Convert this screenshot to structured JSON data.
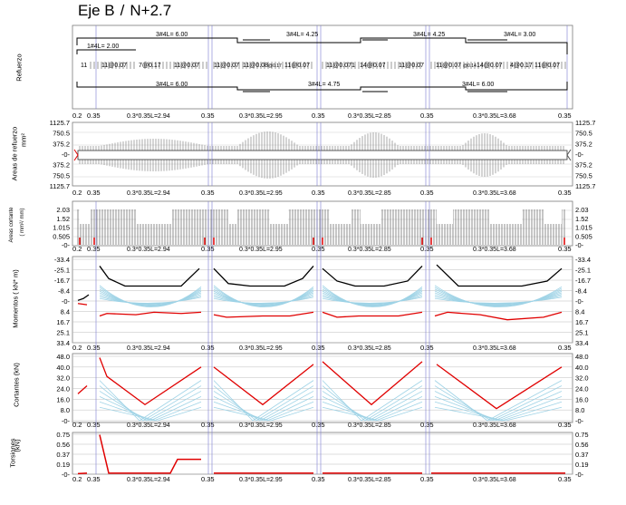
{
  "header": {
    "axis": "Eje B",
    "level": "N+2.7"
  },
  "panels": {
    "refuerzo": "Refuerzo",
    "areas": "Areas de refuerzo",
    "areas_unit": "mm²",
    "cortante_areas": "Areas cortante",
    "cortante_unit": "( mm²/ mm)",
    "momentos": "Momentos ( kN* m)",
    "cortantes": "Cortantes (kN)",
    "torsiones": "Torsiones",
    "torsiones_unit": "(kN)"
  },
  "ticks": {
    "areas": [
      "1125.7",
      "750.5",
      "375.2",
      "-0-",
      "375.2",
      "750.5",
      "1125.7"
    ],
    "cortante_areas": [
      "2.03",
      "1.52",
      "1.015",
      "0.505",
      "-0-"
    ],
    "momentos": [
      "-33.4",
      "-25.1",
      "-16.7",
      "-8.4",
      "-0-",
      "8.4",
      "16.7",
      "25.1",
      "33.4"
    ],
    "cortantes": [
      "48.0",
      "40.0",
      "32.0",
      "24.0",
      "16.0",
      "8.0",
      "-0-"
    ],
    "torsiones": [
      "0.75",
      "0.56",
      "0.37",
      "0.19",
      "-0-"
    ]
  },
  "spans": {
    "col_left": "0.2",
    "col_mid": "0.35",
    "labels": [
      "0.3*0.35L=2.94",
      "0.3*0.35L=2.95",
      "0.3*0.35L=2.85",
      "0.3*0.35L=3.68"
    ]
  },
  "refuerzo": {
    "top": [
      "3#4L= 6.00",
      "3#4L= 4.25",
      "3#4L= 4.25",
      "3#4L= 3.00"
    ],
    "top_left": "1#4L= 2.00",
    "bottom": [
      "3#4L= 6.00",
      "3#4L= 4.75",
      "3#4L= 6.00"
    ],
    "stirrups": [
      "11",
      "11@0.07",
      "7@0.17",
      "11@0.07",
      "11@0.07",
      "11@0.08",
      "@0.17",
      "11@0.07",
      "11@0.071",
      "14@0.07",
      "11@0.07",
      "11@0.07",
      "@0.14",
      "14@0.07",
      "4@0.17",
      "11@0.07"
    ]
  },
  "chart_data": [
    {
      "type": "line",
      "title": "Momentos ( kN* m)",
      "ylabel": "Momentos ( kN* m)",
      "ylim": [
        33.4,
        -33.4
      ],
      "series": [
        {
          "name": "",
          "color": "#000000",
          "x": [
            0.0,
            0.4,
            0.8,
            1.2,
            1.6,
            2.0,
            2.4,
            2.8
          ],
          "values": [
            -23,
            -14,
            -11,
            -11,
            -11,
            -11,
            -13,
            -24
          ]
        },
        {
          "name": "",
          "color": "#e00000",
          "x": [
            0.0,
            0.4,
            0.8,
            1.2,
            1.6,
            2.0,
            2.4,
            2.8
          ],
          "values": [
            12,
            10,
            11,
            11,
            9,
            8,
            9,
            9
          ]
        }
      ]
    },
    {
      "type": "line",
      "title": "Cortantes (kN)",
      "ylabel": "Cortantes (kN)",
      "ylim": [
        0,
        48
      ],
      "series": [
        {
          "name": "",
          "color": "#e00000",
          "x": [
            0,
            1,
            2,
            3,
            4,
            5,
            6
          ],
          "values": [
            47,
            33,
            24,
            12,
            24,
            31,
            39
          ]
        }
      ]
    },
    {
      "type": "line",
      "title": "Torsiones (kN)",
      "ylabel": "Torsiones (kN)",
      "ylim": [
        0,
        0.75
      ],
      "series": [
        {
          "name": "",
          "color": "#e00000",
          "x": [
            0,
            1,
            2,
            3,
            4
          ],
          "values": [
            0.74,
            0.02,
            0.02,
            0.02,
            0.28
          ]
        }
      ]
    }
  ]
}
